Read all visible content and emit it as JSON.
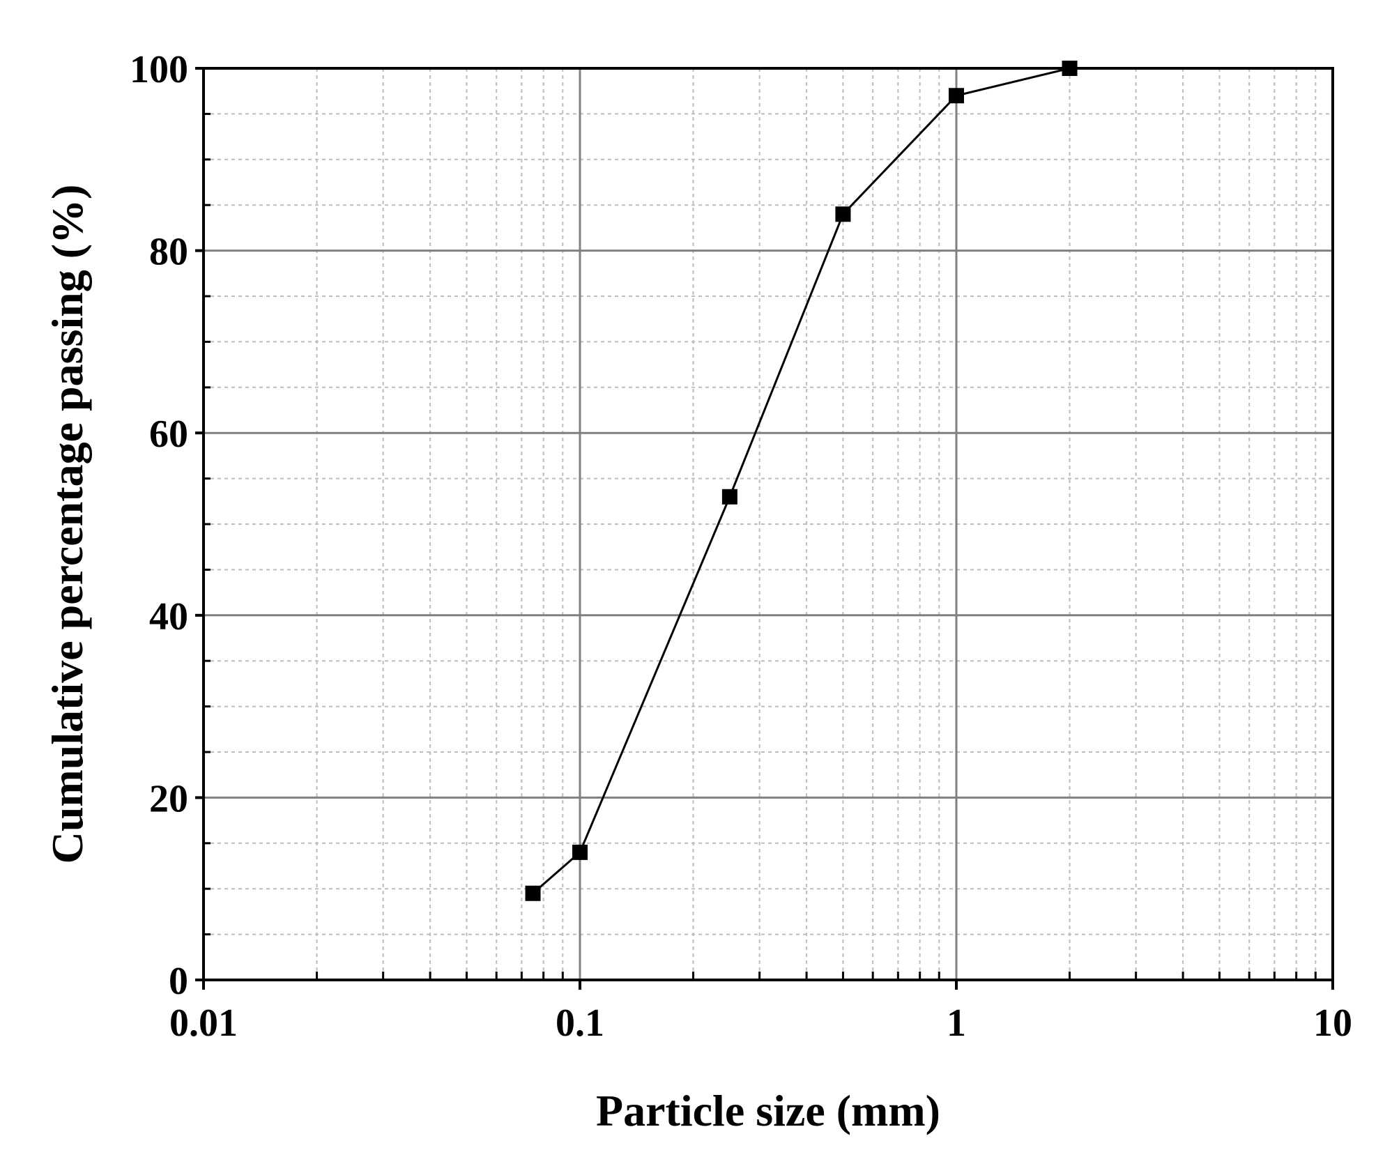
{
  "chart_data": {
    "type": "line",
    "title": "",
    "xlabel": "Particle size (mm)",
    "ylabel": "Cumulative percentage passing (%)",
    "x_scale": "log",
    "xlim": [
      0.01,
      10
    ],
    "ylim": [
      0,
      100
    ],
    "x_ticks": [
      "0.01",
      "0.1",
      "1",
      "10"
    ],
    "y_ticks": [
      "0",
      "20",
      "40",
      "60",
      "80",
      "100"
    ],
    "grid": true,
    "minor_grid": true,
    "legend": "none",
    "series": [
      {
        "x": [
          0.075,
          0.1,
          0.25,
          0.5,
          1,
          2
        ],
        "y": [
          9.5,
          14,
          53,
          84,
          97,
          100
        ],
        "color": "#000000",
        "marker": "square"
      }
    ]
  }
}
